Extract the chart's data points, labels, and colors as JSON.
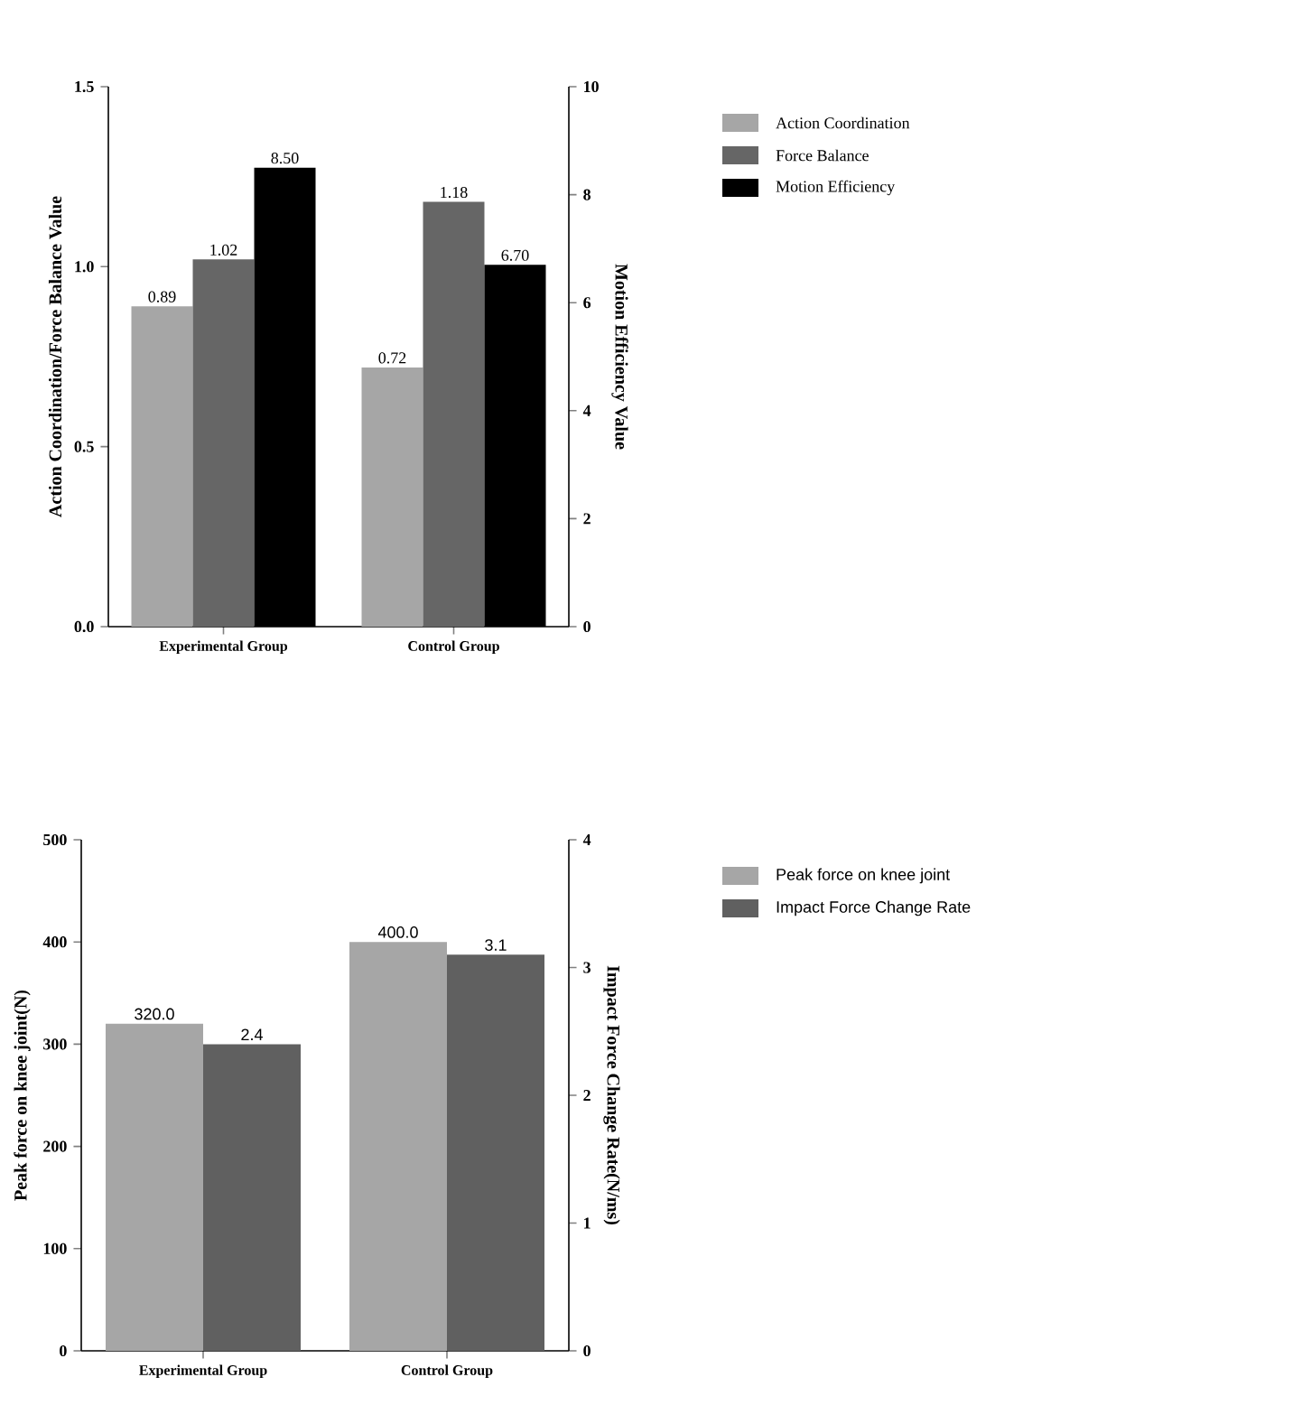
{
  "chart_data": [
    {
      "type": "bar",
      "categories": [
        "Experimental Group",
        "Control Group"
      ],
      "ylabel": "Action Coordination/Force Balance Value",
      "y2label": "Motion Efficiency Value",
      "series": [
        {
          "name": "Action Coordination",
          "color": "#a6a6a6",
          "values": [
            0.89,
            0.72
          ],
          "value_labels": [
            "0.89",
            "0.72"
          ]
        },
        {
          "name": "Force Balance",
          "color": "#666666",
          "values": [
            1.02,
            1.18
          ],
          "value_labels": [
            "1.02",
            "1.18"
          ]
        },
        {
          "name": "Motion Efficiency",
          "color": "#000000",
          "values": [
            8.5,
            6.7
          ],
          "value_labels": [
            "8.50",
            "6.70"
          ],
          "axis": "y2"
        }
      ],
      "ylim": [
        0,
        1.5
      ],
      "yticks": [
        {
          "value": 0,
          "label": "0.0"
        },
        0.5,
        {
          "value": 1,
          "label": "1.0"
        },
        1.5
      ],
      "y2lim": [
        0,
        10
      ],
      "y2ticks": [
        0,
        2,
        4,
        6,
        8,
        10
      ],
      "legend": "top right"
    },
    {
      "type": "bar",
      "categories": [
        "Experimental Group",
        "Control Group"
      ],
      "ylabel": "Peak force on knee joint(N)",
      "y2label": "Impact Force Change Rate(N/ms)",
      "series": [
        {
          "name": "Peak force on knee joint",
          "color": "#a6a6a6",
          "values": [
            320,
            400
          ],
          "value_labels": [
            "320.0",
            "400.0"
          ]
        },
        {
          "name": "Impact Force Change Rate",
          "color": "#606060",
          "values": [
            2.4,
            3.1
          ],
          "value_labels": [
            "2.4",
            "3.1"
          ],
          "axis": "y2"
        }
      ],
      "ylim": [
        0,
        500
      ],
      "yticks": [
        0,
        100,
        200,
        300,
        400,
        500
      ],
      "y2lim": [
        0,
        4
      ],
      "y2ticks": [
        0,
        1,
        2,
        3,
        4
      ],
      "legend": "top right"
    }
  ]
}
